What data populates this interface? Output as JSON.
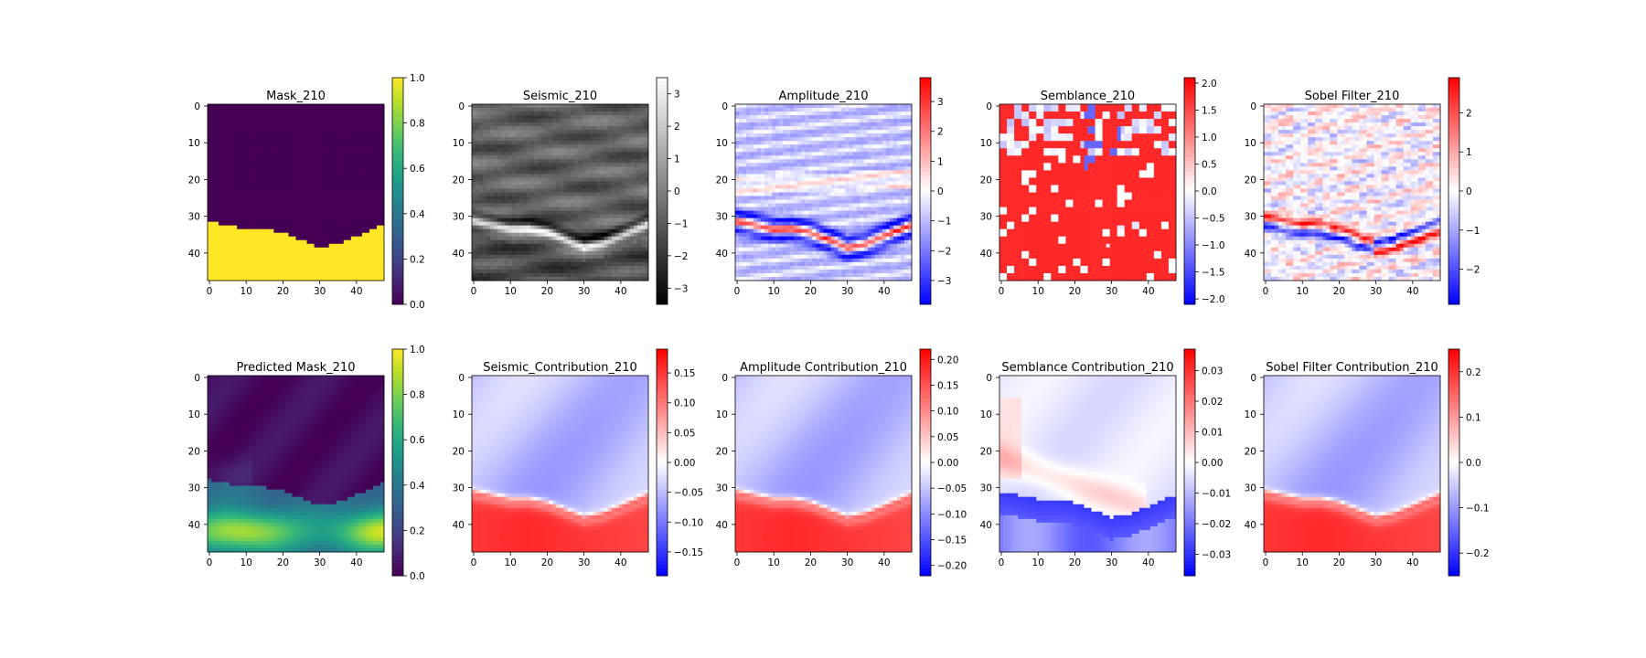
{
  "figure": {
    "panels": [
      {
        "title": "Mask_210",
        "cmap": "viridis",
        "field": "mask",
        "cbar_ticks": [
          "0.0",
          "0.2",
          "0.4",
          "0.6",
          "0.8",
          "1.0"
        ],
        "cbar_range": [
          0,
          1
        ]
      },
      {
        "title": "Seismic_210",
        "cmap": "gray",
        "field": "seismic",
        "cbar_ticks": [
          "−3",
          "−2",
          "−1",
          "0",
          "1",
          "2",
          "3"
        ],
        "cbar_range": [
          -3.5,
          3.5
        ]
      },
      {
        "title": "Amplitude_210",
        "cmap": "bwr",
        "field": "amplitude",
        "cbar_ticks": [
          "−3",
          "−2",
          "−1",
          "0",
          "1",
          "2",
          "3"
        ],
        "cbar_range": [
          -3.8,
          3.8
        ]
      },
      {
        "title": "Semblance_210",
        "cmap": "bwr",
        "field": "semblance",
        "cbar_ticks": [
          "−2.0",
          "−1.5",
          "−1.0",
          "−0.5",
          "0.0",
          "0.5",
          "1.0",
          "1.5",
          "2.0"
        ],
        "cbar_range": [
          -2.1,
          2.1
        ]
      },
      {
        "title": "Sobel Filter_210",
        "cmap": "bwr",
        "field": "sobel",
        "cbar_ticks": [
          "−2",
          "−1",
          "0",
          "1",
          "2"
        ],
        "cbar_range": [
          -2.9,
          2.9
        ]
      },
      {
        "title": "Predicted Mask_210",
        "cmap": "viridis",
        "field": "pred",
        "cbar_ticks": [
          "0.0",
          "0.2",
          "0.4",
          "0.6",
          "0.8",
          "1.0"
        ],
        "cbar_range": [
          0,
          1
        ]
      },
      {
        "title": "Seismic_Contribution_210",
        "cmap": "bwr",
        "field": "contrib",
        "cbar_ticks": [
          "−0.15",
          "−0.10",
          "−0.05",
          "0.00",
          "0.05",
          "0.10",
          "0.15"
        ],
        "cbar_range": [
          -0.19,
          0.19
        ]
      },
      {
        "title": "Amplitude Contribution_210",
        "cmap": "bwr",
        "field": "contrib",
        "cbar_ticks": [
          "−0.20",
          "−0.15",
          "−0.10",
          "−0.05",
          "0.00",
          "0.05",
          "0.10",
          "0.15",
          "0.20"
        ],
        "cbar_range": [
          -0.22,
          0.22
        ]
      },
      {
        "title": "Semblance Contribution_210",
        "cmap": "bwr",
        "field": "semb_contrib",
        "cbar_ticks": [
          "−0.03",
          "−0.02",
          "−0.01",
          "0.00",
          "0.01",
          "0.02",
          "0.03"
        ],
        "cbar_range": [
          -0.037,
          0.037
        ]
      },
      {
        "title": "Sobel Filter Contribution_210",
        "cmap": "bwr",
        "field": "contrib",
        "cbar_ticks": [
          "−0.2",
          "−0.1",
          "0.0",
          "0.1",
          "0.2"
        ],
        "cbar_range": [
          -0.25,
          0.25
        ]
      }
    ],
    "x_ticks": [
      "0",
      "10",
      "20",
      "30",
      "40"
    ],
    "y_ticks": [
      "0",
      "10",
      "20",
      "30",
      "40"
    ]
  },
  "chart_data": {
    "type": "heatmap",
    "grid_size": [
      48,
      48
    ],
    "x_range": [
      0,
      47
    ],
    "y_range": [
      0,
      47
    ],
    "images": [
      {
        "title": "Mask_210",
        "colormap": "viridis",
        "vmin": 0,
        "vmax": 1,
        "description_values": {
          "boundary_row_by_col": [
            [
              0,
              32
            ],
            [
              5,
              33
            ],
            [
              10,
              34
            ],
            [
              15,
              34
            ],
            [
              20,
              35
            ],
            [
              25,
              37
            ],
            [
              30,
              39
            ],
            [
              35,
              38
            ],
            [
              40,
              36
            ],
            [
              47,
              33
            ]
          ],
          "above": 0,
          "below": 1
        }
      },
      {
        "title": "Seismic_210",
        "colormap": "gray",
        "vmin": -3.5,
        "vmax": 3.5
      },
      {
        "title": "Amplitude_210",
        "colormap": "bwr",
        "vmin": -3.8,
        "vmax": 3.8
      },
      {
        "title": "Semblance_210",
        "colormap": "bwr",
        "vmin": -2.1,
        "vmax": 2.1
      },
      {
        "title": "Sobel Filter_210",
        "colormap": "bwr",
        "vmin": -2.9,
        "vmax": 2.9
      },
      {
        "title": "Predicted Mask_210",
        "colormap": "viridis",
        "vmin": 0,
        "vmax": 1
      },
      {
        "title": "Seismic_Contribution_210",
        "colormap": "bwr",
        "vmin": -0.19,
        "vmax": 0.19
      },
      {
        "title": "Amplitude Contribution_210",
        "colormap": "bwr",
        "vmin": -0.22,
        "vmax": 0.22
      },
      {
        "title": "Semblance Contribution_210",
        "colormap": "bwr",
        "vmin": -0.037,
        "vmax": 0.037
      },
      {
        "title": "Sobel Filter Contribution_210",
        "colormap": "bwr",
        "vmin": -0.25,
        "vmax": 0.25
      }
    ]
  }
}
